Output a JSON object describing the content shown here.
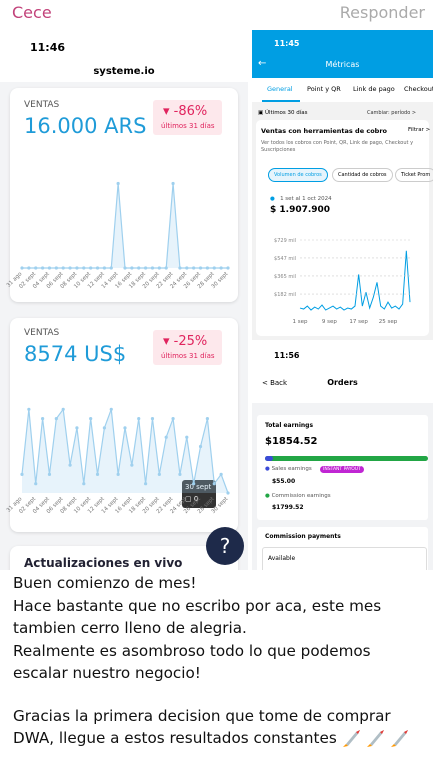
{
  "header": {
    "sender": "Cece",
    "action": "Responder"
  },
  "left_screen": {
    "time": "11:46",
    "site": "systeme.io",
    "cards": [
      {
        "label": "VENTAS",
        "amount": "16.000 ARS",
        "change": "-86%",
        "period": "últimos 31 días",
        "chart": {
          "categories": [
            "31 ago",
            null,
            "02 sept",
            null,
            "04 sept",
            null,
            "06 sept",
            null,
            "08 sept",
            null,
            "10 sept",
            null,
            "12 sept",
            null,
            "14 sept",
            null,
            "16 sept",
            null,
            "18 sept",
            null,
            "20 sept",
            null,
            "22 sept",
            null,
            "24 sept",
            null,
            "26 sept",
            null,
            "28 sept",
            null,
            "30 sept"
          ],
          "values": [
            0,
            0,
            0,
            0,
            0,
            0,
            0,
            0,
            0,
            0,
            0,
            0,
            0,
            0,
            1,
            0,
            0,
            0,
            0,
            0,
            0,
            0,
            1,
            0,
            0,
            0,
            0,
            0,
            0,
            0,
            0
          ],
          "ylim": [
            0,
            1.1
          ],
          "color": "#9fd0ee"
        }
      },
      {
        "label": "VENTAS",
        "amount": "8574 US$",
        "change": "-25%",
        "period": "últimos 31 días",
        "chart": {
          "categories": [
            "31 ago",
            null,
            "02 sept",
            null,
            "04 sept",
            null,
            "06 sept",
            null,
            "08 sept",
            null,
            "10 sept",
            null,
            "12 sept",
            null,
            "14 sept",
            null,
            "16 sept",
            null,
            "18 sept",
            null,
            "20 sept",
            null,
            "22 sept",
            null,
            "24 sept",
            null,
            "26 sept",
            null,
            "28 sept",
            null,
            "30 sept"
          ],
          "values": [
            2,
            9,
            1,
            8,
            2,
            8,
            9,
            3,
            7,
            1,
            8,
            2,
            7,
            9,
            2,
            7,
            3,
            8,
            1,
            8,
            2,
            6,
            8,
            2,
            6,
            1,
            5,
            8,
            1,
            2,
            0
          ],
          "ylim": [
            0,
            10
          ],
          "color": "#9fd0ee"
        }
      }
    ],
    "tooltip": {
      "date": "30 sept",
      "value": 0
    },
    "next_section": "Actualizaciones en vivo",
    "help": "?"
  },
  "metrics_screen": {
    "time": "11:45",
    "title": "Métricas",
    "tabs": [
      "General",
      "Point y QR",
      "Link de pago",
      "Checkout"
    ],
    "period": "Últimos 30 días",
    "change_period": "Cambiar: período >",
    "section": "Ventas con herramientas de cobro",
    "filter": "Filtrar >",
    "description": "Ver todos los cobros con Point, QR, Link de pago, Checkout y Suscripciones",
    "chips": [
      "Volumen de cobros",
      "Cantidad de cobros",
      "Ticket Prom"
    ],
    "range": "1 set al 1 oct 2024",
    "total": "$ 1.907.900",
    "chart": {
      "type": "line",
      "categories": [
        "1 sep",
        null,
        null,
        null,
        null,
        null,
        null,
        null,
        "9 sep",
        null,
        null,
        null,
        null,
        null,
        null,
        null,
        "17 sep",
        null,
        null,
        null,
        null,
        null,
        null,
        null,
        "25 sep",
        null,
        null,
        null,
        null,
        null,
        null
      ],
      "values": [
        40,
        30,
        60,
        20,
        50,
        30,
        70,
        20,
        40,
        60,
        30,
        50,
        20,
        40,
        30,
        60,
        380,
        60,
        200,
        40,
        150,
        300,
        60,
        30,
        100,
        40,
        60,
        30,
        80,
        620,
        100
      ],
      "ylim": [
        0,
        800
      ],
      "yticks": [
        {
          "value": 729,
          "label": "$729 mil"
        },
        {
          "value": 547,
          "label": "$547 mil"
        },
        {
          "value": 365,
          "label": "$365 mil"
        },
        {
          "value": 182,
          "label": "$182 mil"
        }
      ],
      "color": "#009ee3"
    }
  },
  "orders_screen": {
    "time": "11:56",
    "back": "< Back",
    "title": "Orders",
    "total_label": "Total earnings",
    "total": "$1854.52",
    "sales_label": "Sales earnings",
    "badge": "INSTANT PAYOUT",
    "sales": "$55.00",
    "commission_label": "Commission earnings",
    "commission": "$1799.52",
    "payments_label": "Commission payments",
    "available": "Available"
  },
  "message": {
    "paragraphs": [
      [
        "Buen comienzo de mes!",
        "Hace bastante que no escribo por aca, este mes",
        "tambien cerro lleno de alegria.",
        "Realmente es asombroso todo lo que podemos",
        "escalar nuestro negocio!"
      ],
      [
        "Gracias la primera decision que tome de comprar",
        "DWA, llegue a estos resultados constantes"
      ]
    ]
  }
}
